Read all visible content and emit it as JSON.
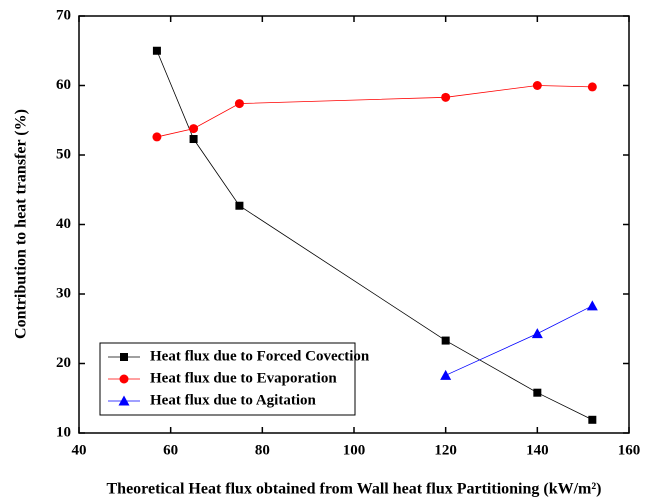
{
  "chart_data": {
    "type": "line",
    "xlabel": "Theoretical Heat flux obtained from Wall heat flux Partitioning (kW/m²)",
    "ylabel": "Contribution to heat transfer (%)",
    "xlim": [
      40,
      160
    ],
    "xticks": [
      40,
      60,
      80,
      100,
      120,
      140,
      160
    ],
    "ylim": [
      10,
      70
    ],
    "yticks": [
      10,
      20,
      30,
      40,
      50,
      60,
      70
    ],
    "legend": "lower left",
    "series": [
      {
        "name": "Heat flux due to Forced Covection",
        "color": "#000000",
        "marker": "square",
        "x": [
          57,
          65,
          75,
          120,
          140,
          152
        ],
        "values": [
          65,
          52.3,
          42.7,
          23.3,
          15.8,
          11.9
        ]
      },
      {
        "name": "Heat flux due to Evaporation",
        "color": "#ff0000",
        "marker": "circle",
        "x": [
          57,
          65,
          75,
          120,
          140,
          152
        ],
        "values": [
          52.6,
          53.8,
          57.4,
          58.3,
          60,
          59.8
        ]
      },
      {
        "name": "Heat flux due to Agitation",
        "color": "#0000ff",
        "marker": "triangle",
        "x": [
          120,
          140,
          152
        ],
        "values": [
          18.3,
          24.3,
          28.3
        ]
      }
    ]
  }
}
